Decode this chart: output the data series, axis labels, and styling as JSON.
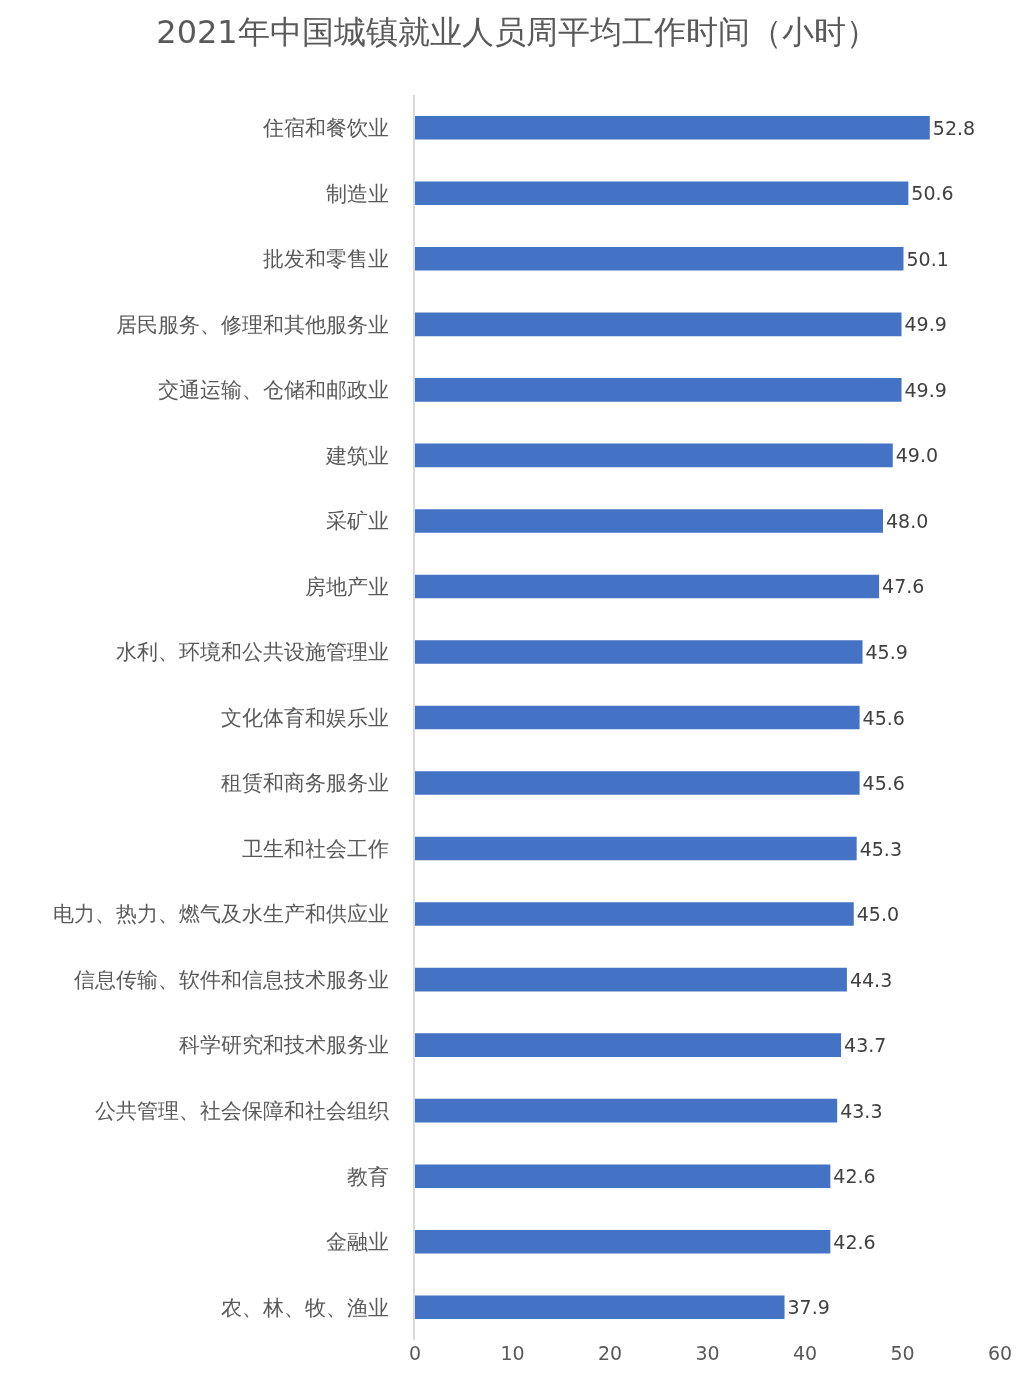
{
  "chart_data": {
    "type": "bar",
    "orientation": "horizontal",
    "title": "2021年中国城镇就业人员周平均工作时间（小时）",
    "categories": [
      "住宿和餐饮业",
      "制造业",
      "批发和零售业",
      "居民服务、修理和其他服务业",
      "交通运输、仓储和邮政业",
      "建筑业",
      "采矿业",
      "房地产业",
      "水利、环境和公共设施管理业",
      "文化体育和娱乐业",
      "租赁和商务服务业",
      "卫生和社会工作",
      "电力、热力、燃气及水生产和供应业",
      "信息传输、软件和信息技术服务业",
      "科学研究和技术服务业",
      "公共管理、社会保障和社会组织",
      "教育",
      "金融业",
      "农、林、牧、渔业"
    ],
    "values": [
      52.8,
      50.6,
      50.1,
      49.9,
      49.9,
      49.0,
      48.0,
      47.6,
      45.9,
      45.6,
      45.6,
      45.3,
      45.0,
      44.3,
      43.7,
      43.3,
      42.6,
      42.6,
      37.9
    ],
    "value_labels": [
      "52.8",
      "50.6",
      "50.1",
      "49.9",
      "49.9",
      "49.0",
      "48.0",
      "47.6",
      "45.9",
      "45.6",
      "45.6",
      "45.3",
      "45.0",
      "44.3",
      "43.7",
      "43.3",
      "42.6",
      "42.6",
      "37.9"
    ],
    "color": "#4472c4",
    "xlim": [
      0,
      60
    ],
    "xticks": [
      0,
      10,
      20,
      30,
      40,
      50,
      60
    ],
    "grid": false,
    "legend": false
  }
}
